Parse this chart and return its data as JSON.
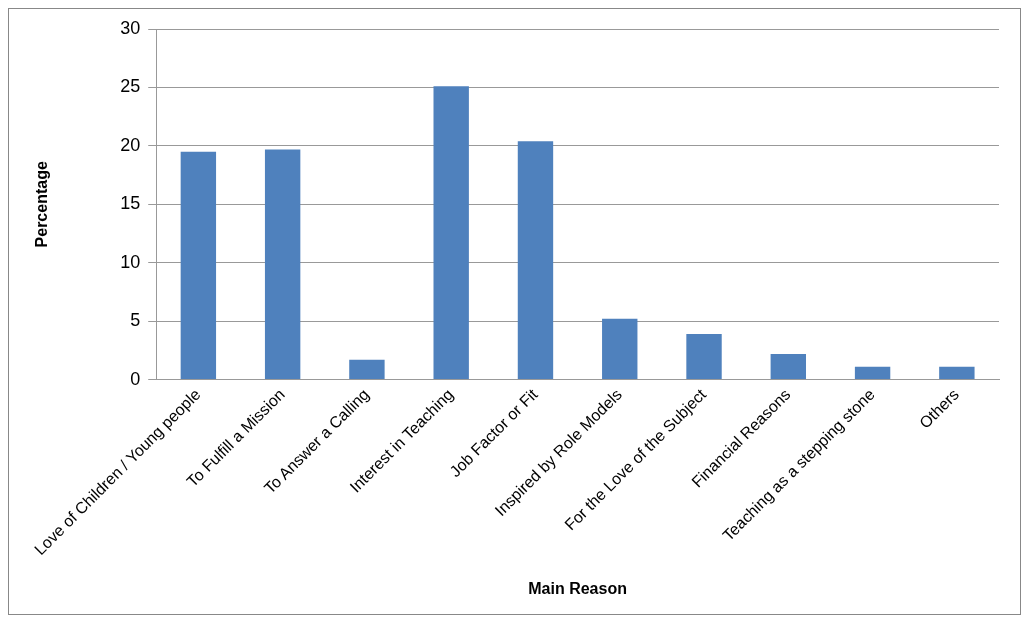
{
  "chart_data": {
    "type": "bar",
    "xlabel": "Main Reason",
    "ylabel": "Percentage",
    "categories": [
      "Love of Children / Young people",
      "To Fulfill a Mission",
      "To Answer a Calling",
      "Interest in Teaching",
      "Job Factor or Fit",
      "Inspired by Role Models",
      "For the Love of the Subject",
      "Financial Reasons",
      "Teaching as a stepping stone",
      "Others"
    ],
    "values": [
      19.5,
      19.7,
      1.7,
      25.1,
      20.4,
      5.2,
      3.9,
      2.2,
      1.1,
      1.1
    ],
    "color": "#4f81bd",
    "ylim": [
      0,
      30
    ],
    "yticks": [
      0,
      5,
      10,
      15,
      20,
      25,
      30
    ],
    "grid": "y",
    "legend": false
  }
}
